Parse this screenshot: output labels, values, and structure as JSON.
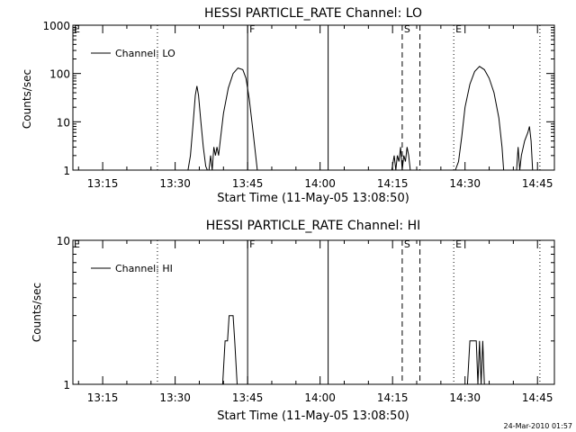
{
  "timestamp": "24-Mar-2010 01:57",
  "colors": {
    "background": "#ffffff",
    "ink": "#000000"
  },
  "chart_data": [
    {
      "type": "line",
      "title": "HESSI PARTICLE_RATE Channel: LO",
      "xlabel": "Start Time (11-May-05 13:08:50)",
      "ylabel": "Counts/sec",
      "yscale": "log",
      "ylim": [
        1,
        1000
      ],
      "xlim": [
        "13:08:50",
        "14:48:30"
      ],
      "x_ticks": [
        "13:15",
        "13:30",
        "13:45",
        "14:00",
        "14:15",
        "14:30",
        "14:45"
      ],
      "y_ticks": [
        "1",
        "10",
        "100",
        "1000"
      ],
      "legend": {
        "label": "Channel: LO",
        "position": "top-left"
      },
      "grid": false,
      "markers": [
        {
          "label": "",
          "time": "13:26:20",
          "style": "dotted"
        },
        {
          "label": "F",
          "time": "13:45:00",
          "style": "solid"
        },
        {
          "label": "",
          "time": "14:01:40",
          "style": "solid"
        },
        {
          "label": "S",
          "time": "14:17:00",
          "style": "dashed"
        },
        {
          "label": "",
          "time": "14:20:40",
          "style": "dashed"
        },
        {
          "label": "E",
          "time": "14:27:40",
          "style": "dotted"
        },
        {
          "label": "",
          "time": "14:45:30",
          "style": "dotted"
        },
        {
          "label": "E",
          "time": "13:08:50",
          "style": "none"
        }
      ],
      "series": [
        {
          "name": "Channel: LO",
          "segments": [
            [
              [
                "13:32:40",
                1
              ],
              [
                "13:33:10",
                2
              ],
              [
                "13:33:40",
                8
              ],
              [
                "13:34:10",
                35
              ],
              [
                "13:34:30",
                55
              ],
              [
                "13:34:50",
                35
              ],
              [
                "13:35:20",
                10
              ],
              [
                "13:35:50",
                3
              ],
              [
                "13:36:20",
                1.2
              ],
              [
                "13:36:40",
                1
              ]
            ],
            [
              [
                "13:37:00",
                1
              ],
              [
                "13:37:20",
                2
              ],
              [
                "13:37:40",
                1
              ],
              [
                "13:38:00",
                3
              ],
              [
                "13:38:20",
                2
              ],
              [
                "13:38:40",
                3
              ],
              [
                "13:39:00",
                2
              ],
              [
                "13:39:20",
                4
              ],
              [
                "13:40:00",
                15
              ],
              [
                "13:41:00",
                50
              ],
              [
                "13:42:00",
                100
              ],
              [
                "13:43:00",
                130
              ],
              [
                "13:44:00",
                120
              ],
              [
                "13:44:40",
                80
              ],
              [
                "13:45:20",
                30
              ],
              [
                "13:46:00",
                8
              ],
              [
                "13:46:40",
                2
              ],
              [
                "13:47:00",
                1
              ]
            ],
            [
              [
                "14:14:50",
                1
              ],
              [
                "14:15:20",
                2
              ],
              [
                "14:15:40",
                1
              ],
              [
                "14:16:00",
                2
              ],
              [
                "14:16:20",
                1.5
              ],
              [
                "14:16:40",
                3
              ],
              [
                "14:17:00",
                1
              ],
              [
                "14:17:20",
                2
              ],
              [
                "14:17:40",
                1.5
              ],
              [
                "14:18:00",
                3
              ],
              [
                "14:18:20",
                2
              ],
              [
                "14:18:40",
                1
              ]
            ],
            [
              [
                "14:28:00",
                1
              ],
              [
                "14:28:40",
                1.5
              ],
              [
                "14:29:20",
                5
              ],
              [
                "14:30:00",
                20
              ],
              [
                "14:31:00",
                60
              ],
              [
                "14:32:00",
                110
              ],
              [
                "14:33:00",
                140
              ],
              [
                "14:34:00",
                120
              ],
              [
                "14:35:00",
                80
              ],
              [
                "14:36:00",
                40
              ],
              [
                "14:37:00",
                12
              ],
              [
                "14:37:40",
                3
              ],
              [
                "14:38:00",
                1
              ]
            ],
            [
              [
                "14:40:40",
                1
              ],
              [
                "14:41:00",
                3
              ],
              [
                "14:41:20",
                1
              ],
              [
                "14:41:40",
                2
              ],
              [
                "14:42:20",
                4
              ],
              [
                "14:43:00",
                6
              ],
              [
                "14:43:20",
                8
              ],
              [
                "14:43:40",
                4
              ],
              [
                "14:44:00",
                1
              ]
            ]
          ]
        }
      ]
    },
    {
      "type": "line",
      "title": "HESSI PARTICLE_RATE Channel: HI",
      "xlabel": "Start Time (11-May-05 13:08:50)",
      "ylabel": "Counts/sec",
      "yscale": "log",
      "ylim": [
        1,
        10
      ],
      "xlim": [
        "13:08:50",
        "14:48:30"
      ],
      "x_ticks": [
        "13:15",
        "13:30",
        "13:45",
        "14:00",
        "14:15",
        "14:30",
        "14:45"
      ],
      "y_ticks": [
        "1",
        "10"
      ],
      "legend": {
        "label": "Channel: HI",
        "position": "top-left"
      },
      "grid": false,
      "markers": [
        {
          "label": "",
          "time": "13:26:20",
          "style": "dotted"
        },
        {
          "label": "F",
          "time": "13:45:00",
          "style": "solid"
        },
        {
          "label": "",
          "time": "14:01:40",
          "style": "solid"
        },
        {
          "label": "S",
          "time": "14:17:00",
          "style": "dashed"
        },
        {
          "label": "",
          "time": "14:20:40",
          "style": "dashed"
        },
        {
          "label": "E",
          "time": "14:27:40",
          "style": "dotted"
        },
        {
          "label": "",
          "time": "14:45:30",
          "style": "dotted"
        },
        {
          "label": "E",
          "time": "13:08:50",
          "style": "none"
        }
      ],
      "series": [
        {
          "name": "Channel: HI",
          "segments": [
            [
              [
                "13:39:50",
                1
              ],
              [
                "13:40:20",
                2
              ],
              [
                "13:40:50",
                2
              ],
              [
                "13:41:10",
                3
              ],
              [
                "13:42:00",
                3
              ],
              [
                "13:42:20",
                2
              ],
              [
                "13:42:50",
                1
              ]
            ],
            [
              [
                "14:30:30",
                1
              ],
              [
                "14:31:00",
                2
              ],
              [
                "14:32:20",
                2
              ],
              [
                "14:32:40",
                1
              ],
              [
                "14:33:00",
                2
              ],
              [
                "14:33:20",
                1
              ],
              [
                "14:33:40",
                2
              ],
              [
                "14:34:00",
                1
              ]
            ]
          ]
        }
      ]
    }
  ]
}
